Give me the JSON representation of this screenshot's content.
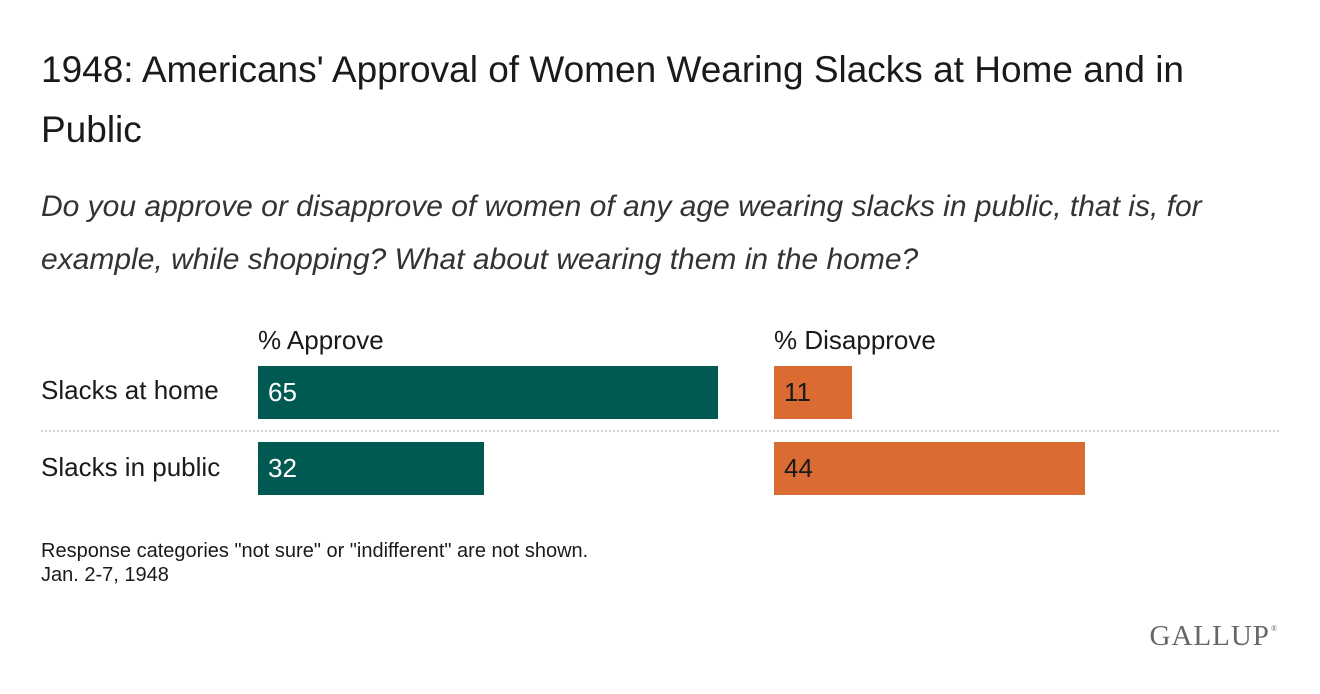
{
  "title": "1948: Americans' Approval of Women Wearing Slacks at Home and in Public",
  "subtitle": "Do you approve or disapprove of women of any age wearing slacks in public, that is, for example, while shopping? What about wearing them in the home?",
  "footnote_line1": "Response categories \"not sure\" or \"indifferent\" are not shown.",
  "footnote_line2": "Jan. 2-7, 1948",
  "logo": "GALLUP",
  "colors": {
    "approve": "#005a51",
    "disapprove": "#d96b33"
  },
  "chart_data": {
    "type": "bar",
    "categories": [
      "Slacks at home",
      "Slacks in public"
    ],
    "series": [
      {
        "name": "% Approve",
        "values": [
          65,
          32
        ]
      },
      {
        "name": "% Disapprove",
        "values": [
          11,
          44
        ]
      }
    ]
  }
}
